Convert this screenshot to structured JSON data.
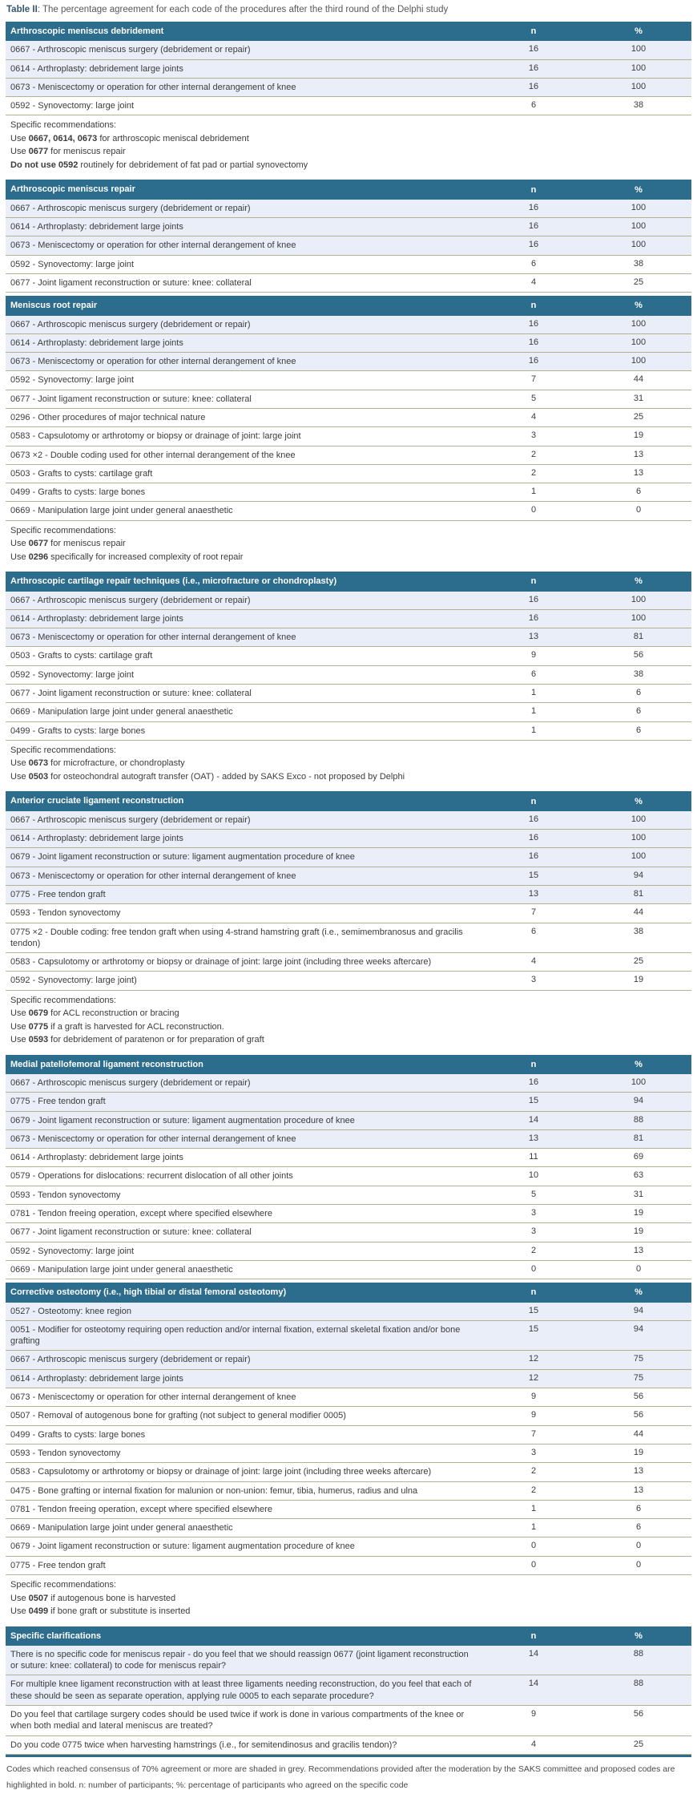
{
  "title": {
    "label": "Table II",
    "text": ": The percentage agreement for each code of the procedures after the third round of the Delphi study"
  },
  "columns": {
    "n": "n",
    "pct": "%"
  },
  "colors": {
    "header_bg": "#2c6d8e",
    "shaded_row": "#e9eef8",
    "separator": "#b8b093",
    "header_text": "#ffffff",
    "caption_label": "#33576e"
  },
  "sections": [
    {
      "header": "Arthroscopic meniscus debridement",
      "rows": [
        {
          "text": "0667 - Arthroscopic meniscus surgery (debridement or repair)",
          "n": "16",
          "pct": "100",
          "shaded": true
        },
        {
          "text": "0614 - Arthroplasty: debridement large joints",
          "n": "16",
          "pct": "100",
          "shaded": true
        },
        {
          "text": "0673 - Meniscectomy or operation for other internal derangement of knee",
          "n": "16",
          "pct": "100",
          "shaded": true
        },
        {
          "text": "0592 - Synovectomy: large joint",
          "n": "6",
          "pct": "38",
          "shaded": false
        }
      ],
      "recommendations": {
        "label": "Specific recommendations:",
        "lines": [
          [
            {
              "t": "Use "
            },
            {
              "t": "0667, 0614, 0673",
              "b": true
            },
            {
              "t": " for arthroscopic meniscal debridement"
            }
          ],
          [
            {
              "t": "Use "
            },
            {
              "t": "0677",
              "b": true
            },
            {
              "t": " for meniscus repair"
            }
          ],
          [
            {
              "t": "Do not use 0592",
              "b": true
            },
            {
              "t": " routinely for debridement of fat pad or partial synovectomy"
            }
          ]
        ]
      }
    },
    {
      "header": "Arthroscopic meniscus repair",
      "rows": [
        {
          "text": "0667 - Arthroscopic meniscus surgery (debridement or repair)",
          "n": "16",
          "pct": "100",
          "shaded": true
        },
        {
          "text": "0614 - Arthroplasty: debridement large joints",
          "n": "16",
          "pct": "100",
          "shaded": true
        },
        {
          "text": "0673 - Meniscectomy or operation for other internal derangement of knee",
          "n": "16",
          "pct": "100",
          "shaded": true
        },
        {
          "text": "0592 - Synovectomy: large joint",
          "n": "6",
          "pct": "38",
          "shaded": false
        },
        {
          "text": "0677 - Joint ligament reconstruction or suture: knee: collateral",
          "n": "4",
          "pct": "25",
          "shaded": false
        }
      ]
    },
    {
      "header": "Meniscus root repair",
      "rows": [
        {
          "text": "0667 - Arthroscopic meniscus surgery (debridement or repair)",
          "n": "16",
          "pct": "100",
          "shaded": true
        },
        {
          "text": "0614 - Arthroplasty: debridement large joints",
          "n": "16",
          "pct": "100",
          "shaded": true
        },
        {
          "text": "0673 - Meniscectomy or operation for other internal derangement of knee",
          "n": "16",
          "pct": "100",
          "shaded": true
        },
        {
          "text": "0592 - Synovectomy: large joint",
          "n": "7",
          "pct": "44",
          "shaded": false
        },
        {
          "text": "0677 - Joint ligament reconstruction or suture: knee: collateral",
          "n": "5",
          "pct": "31",
          "shaded": false
        },
        {
          "text": "0296 - Other procedures of major technical nature",
          "n": "4",
          "pct": "25",
          "shaded": false
        },
        {
          "text": "0583 - Capsulotomy or arthrotomy or biopsy or drainage of joint: large joint",
          "n": "3",
          "pct": "19",
          "shaded": false
        },
        {
          "text": "0673 ×2 - Double coding used for other internal derangement of the knee",
          "n": "2",
          "pct": "13",
          "shaded": false
        },
        {
          "text": "0503 - Grafts to cysts: cartilage graft",
          "n": "2",
          "pct": "13",
          "shaded": false
        },
        {
          "text": "0499 - Grafts to cysts: large bones",
          "n": "1",
          "pct": "6",
          "shaded": false
        },
        {
          "text": "0669 - Manipulation large joint under general anaesthetic",
          "n": "0",
          "pct": "0",
          "shaded": false
        }
      ],
      "recommendations": {
        "label": "Specific recommendations:",
        "lines": [
          [
            {
              "t": "Use "
            },
            {
              "t": "0677",
              "b": true
            },
            {
              "t": " for meniscus repair"
            }
          ],
          [
            {
              "t": "Use "
            },
            {
              "t": "0296",
              "b": true
            },
            {
              "t": " specifically for increased complexity of root repair"
            }
          ]
        ]
      }
    },
    {
      "header": "Arthroscopic cartilage repair techniques (i.e., microfracture or chondroplasty)",
      "rows": [
        {
          "text": "0667 - Arthroscopic meniscus surgery (debridement or repair)",
          "n": "16",
          "pct": "100",
          "shaded": true
        },
        {
          "text": "0614 - Arthroplasty: debridement large joints",
          "n": "16",
          "pct": "100",
          "shaded": true
        },
        {
          "text": "0673 - Meniscectomy or operation for other internal derangement of knee",
          "n": "13",
          "pct": "81",
          "shaded": true
        },
        {
          "text": "0503 - Grafts to cysts: cartilage graft",
          "n": "9",
          "pct": "56",
          "shaded": false
        },
        {
          "text": "0592 - Synovectomy: large joint",
          "n": "6",
          "pct": "38",
          "shaded": false
        },
        {
          "text": "0677 - Joint ligament reconstruction or suture: knee: collateral",
          "n": "1",
          "pct": "6",
          "shaded": false
        },
        {
          "text": "0669 - Manipulation large joint under general anaesthetic",
          "n": "1",
          "pct": "6",
          "shaded": false
        },
        {
          "text": "0499 - Grafts to cysts: large bones",
          "n": "1",
          "pct": "6",
          "shaded": false
        }
      ],
      "recommendations": {
        "label": "Specific recommendations:",
        "lines": [
          [
            {
              "t": "Use "
            },
            {
              "t": "0673",
              "b": true
            },
            {
              "t": " for microfracture, or chondroplasty"
            }
          ],
          [
            {
              "t": "Use "
            },
            {
              "t": "0503",
              "b": true
            },
            {
              "t": " for osteochondral autograft transfer (OAT) - added by SAKS Exco - not proposed by Delphi"
            }
          ]
        ]
      }
    },
    {
      "header": "Anterior cruciate ligament reconstruction",
      "rows": [
        {
          "text": "0667 - Arthroscopic meniscus surgery (debridement or repair)",
          "n": "16",
          "pct": "100",
          "shaded": true
        },
        {
          "text": "0614 - Arthroplasty: debridement large joints",
          "n": "16",
          "pct": "100",
          "shaded": true
        },
        {
          "text": "0679 - Joint ligament reconstruction or suture: ligament augmentation procedure of knee",
          "n": "16",
          "pct": "100",
          "shaded": true
        },
        {
          "text": "0673 - Meniscectomy or operation for other internal derangement of knee",
          "n": "15",
          "pct": "94",
          "shaded": true
        },
        {
          "text": "0775 - Free tendon graft",
          "n": "13",
          "pct": "81",
          "shaded": true
        },
        {
          "text": "0593 - Tendon synovectomy",
          "n": "7",
          "pct": "44",
          "shaded": false
        },
        {
          "text": "0775 ×2 - Double coding: free tendon graft when using 4-strand hamstring graft (i.e., semimembranosus and gracilis tendon)",
          "n": "6",
          "pct": "38",
          "shaded": false
        },
        {
          "text": "0583 - Capsulotomy or arthrotomy or biopsy or drainage of joint: large joint (including three weeks aftercare)",
          "n": "4",
          "pct": "25",
          "shaded": false
        },
        {
          "text": "0592 - Synovectomy: large joint)",
          "n": "3",
          "pct": "19",
          "shaded": false
        }
      ],
      "recommendations": {
        "label": "Specific recommendations:",
        "lines": [
          [
            {
              "t": "Use "
            },
            {
              "t": "0679",
              "b": true
            },
            {
              "t": " for ACL reconstruction or bracing"
            }
          ],
          [
            {
              "t": "Use "
            },
            {
              "t": "0775",
              "b": true
            },
            {
              "t": " if a graft is harvested for ACL reconstruction."
            }
          ],
          [
            {
              "t": "Use "
            },
            {
              "t": "0593",
              "b": true
            },
            {
              "t": " for debridement of paratenon or for preparation of graft"
            }
          ]
        ]
      }
    },
    {
      "header": "Medial patellofemoral ligament reconstruction",
      "rows": [
        {
          "text": "0667 - Arthroscopic meniscus surgery (debridement or repair)",
          "n": "16",
          "pct": "100",
          "shaded": true
        },
        {
          "text": "0775 - Free tendon graft",
          "n": "15",
          "pct": "94",
          "shaded": true
        },
        {
          "text": "0679 - Joint ligament reconstruction or suture: ligament augmentation procedure of knee",
          "n": "14",
          "pct": "88",
          "shaded": true
        },
        {
          "text": "0673 - Meniscectomy or operation for other internal derangement of knee",
          "n": "13",
          "pct": "81",
          "shaded": true
        },
        {
          "text": "0614 - Arthroplasty: debridement large joints",
          "n": "11",
          "pct": "69",
          "shaded": false
        },
        {
          "text": "0579 - Operations for dislocations: recurrent dislocation of all other joints",
          "n": "10",
          "pct": "63",
          "shaded": false
        },
        {
          "text": "0593 - Tendon synovectomy",
          "n": "5",
          "pct": "31",
          "shaded": false
        },
        {
          "text": "0781 - Tendon freeing operation, except where specified elsewhere",
          "n": "3",
          "pct": "19",
          "shaded": false
        },
        {
          "text": "0677 - Joint ligament reconstruction or suture: knee: collateral",
          "n": "3",
          "pct": "19",
          "shaded": false
        },
        {
          "text": "0592 - Synovectomy: large joint",
          "n": "2",
          "pct": "13",
          "shaded": false
        },
        {
          "text": "0669 - Manipulation large joint under general anaesthetic",
          "n": "0",
          "pct": "0",
          "shaded": false
        }
      ]
    },
    {
      "header": "Corrective osteotomy (i.e., high tibial or distal femoral osteotomy)",
      "rows": [
        {
          "text": "0527 - Osteotomy: knee region",
          "n": "15",
          "pct": "94",
          "shaded": true
        },
        {
          "text": "0051 - Modifier for osteotomy requiring open reduction and/or internal fixation, external skeletal fixation and/or bone grafting",
          "n": "15",
          "pct": "94",
          "shaded": true
        },
        {
          "text": "0667 - Arthroscopic meniscus surgery (debridement or repair)",
          "n": "12",
          "pct": "75",
          "shaded": true
        },
        {
          "text": "0614 - Arthroplasty: debridement large joints",
          "n": "12",
          "pct": "75",
          "shaded": true
        },
        {
          "text": "0673 - Meniscectomy or operation for other internal derangement of knee",
          "n": "9",
          "pct": "56",
          "shaded": false
        },
        {
          "text": "0507 - Removal of autogenous bone for grafting (not subject to general modifier 0005)",
          "n": "9",
          "pct": "56",
          "shaded": false
        },
        {
          "text": "0499 - Grafts to cysts: large bones",
          "n": "7",
          "pct": "44",
          "shaded": false
        },
        {
          "text": "0593 - Tendon synovectomy",
          "n": "3",
          "pct": "19",
          "shaded": false
        },
        {
          "text": "0583 - Capsulotomy or arthrotomy or biopsy or drainage of joint: large joint (including three weeks aftercare)",
          "n": "2",
          "pct": "13",
          "shaded": false
        },
        {
          "text": "0475 - Bone grafting or internal fixation for malunion or non-union: femur, tibia, humerus, radius and ulna",
          "n": "2",
          "pct": "13",
          "shaded": false
        },
        {
          "text": "0781 - Tendon freeing operation, except where specified elsewhere",
          "n": "1",
          "pct": "6",
          "shaded": false
        },
        {
          "text": "0669 - Manipulation large joint under general anaesthetic",
          "n": "1",
          "pct": "6",
          "shaded": false
        },
        {
          "text": "0679 - Joint ligament reconstruction or suture: ligament augmentation procedure of knee",
          "n": "0",
          "pct": "0",
          "shaded": false
        },
        {
          "text": "0775 - Free tendon graft",
          "n": "0",
          "pct": "0",
          "shaded": false
        }
      ],
      "recommendations": {
        "label": "Specific recommendations:",
        "lines": [
          [
            {
              "t": "Use "
            },
            {
              "t": "0507",
              "b": true
            },
            {
              "t": " if autogenous bone is harvested"
            }
          ],
          [
            {
              "t": "Use "
            },
            {
              "t": "0499",
              "b": true
            },
            {
              "t": " if bone graft or substitute is inserted"
            }
          ]
        ]
      }
    },
    {
      "header": "Specific clarifications",
      "rows": [
        {
          "text": "There is no specific code for meniscus repair - do you feel that we should reassign 0677 (joint ligament reconstruction or suture: knee: collateral) to code for meniscus repair?",
          "n": "14",
          "pct": "88",
          "shaded": true
        },
        {
          "text": "For multiple knee ligament reconstruction with at least three ligaments needing reconstruction, do you feel that each of these should be seen as separate operation, applying rule 0005 to each separate procedure?",
          "n": "14",
          "pct": "88",
          "shaded": true
        },
        {
          "text": "Do you feel that cartilage surgery codes should be used twice if work is done in various compartments of the knee or when both medial and lateral meniscus are treated?",
          "n": "9",
          "pct": "56",
          "shaded": false
        },
        {
          "text": "Do you code 0775 twice when harvesting hamstrings (i.e., for semitendinosus and gracilis tendon)?",
          "n": "4",
          "pct": "25",
          "shaded": false
        }
      ]
    }
  ],
  "footnote": "Codes which reached consensus of 70% agreement or more are shaded in grey. Recommendations provided after the moderation by the SAKS committee and proposed codes are highlighted in bold. n: number of participants; %: percentage of participants who agreed on the specific code"
}
